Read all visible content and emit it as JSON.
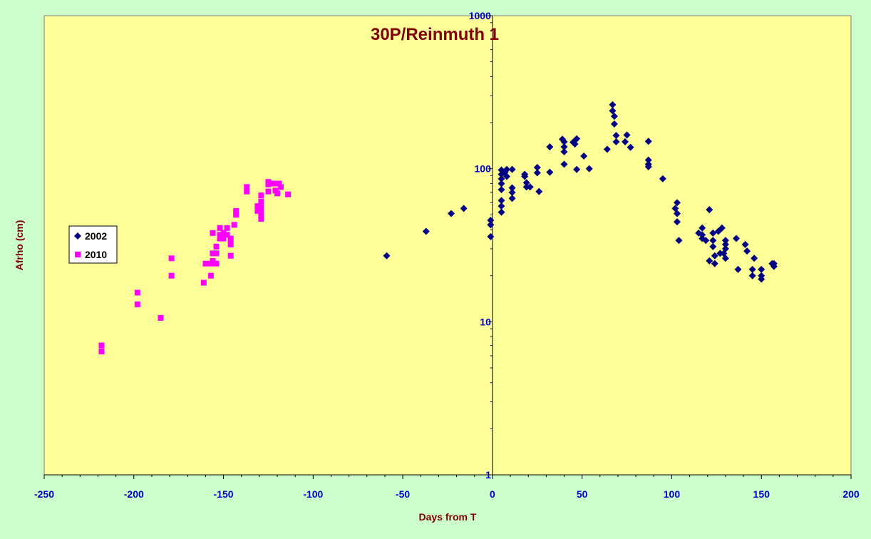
{
  "chart_data": {
    "type": "scatter",
    "title": "30P/Reinmuth 1",
    "xlabel": "Days from T",
    "ylabel": "Afrho (cm)",
    "xlim": [
      -250,
      200
    ],
    "ylim": [
      1,
      1000
    ],
    "yscale": "log",
    "x_ticks": [
      -250,
      -200,
      -150,
      -100,
      -50,
      0,
      50,
      100,
      150,
      200
    ],
    "x_tick_labels": [
      "-250",
      "-200",
      "-150",
      "-100",
      "-50",
      "0",
      "50",
      "100",
      "150",
      "200"
    ],
    "y_ticks": [
      1,
      10,
      100,
      1000
    ],
    "y_tick_labels": [
      "1",
      "10",
      "100",
      "1000"
    ],
    "grid": false,
    "legend": "left-middle",
    "colors": {
      "plot_background": "#ffff99",
      "page_background": "#ccffcc",
      "axis_text": "#0000cc",
      "title_text": "#800000"
    },
    "series": [
      {
        "name": "2002",
        "marker": "diamond",
        "color": "#000080",
        "points": [
          [
            -59,
            27
          ],
          [
            -37,
            39
          ],
          [
            -23,
            51
          ],
          [
            -16,
            55
          ],
          [
            -1,
            46
          ],
          [
            -1,
            43
          ],
          [
            -1,
            36
          ],
          [
            5,
            98
          ],
          [
            5,
            92
          ],
          [
            5,
            86
          ],
          [
            5,
            80
          ],
          [
            5,
            73
          ],
          [
            5,
            62
          ],
          [
            5,
            57
          ],
          [
            5,
            52
          ],
          [
            7,
            95
          ],
          [
            8,
            99
          ],
          [
            8,
            89
          ],
          [
            11,
            99
          ],
          [
            11,
            75
          ],
          [
            11,
            70
          ],
          [
            11,
            64
          ],
          [
            18,
            92
          ],
          [
            18,
            89
          ],
          [
            19,
            81
          ],
          [
            19,
            76
          ],
          [
            21,
            76
          ],
          [
            25,
            102
          ],
          [
            25,
            94
          ],
          [
            26,
            71
          ],
          [
            32,
            139
          ],
          [
            32,
            95
          ],
          [
            39,
            156
          ],
          [
            40,
            150
          ],
          [
            40,
            139
          ],
          [
            40,
            129
          ],
          [
            40,
            107
          ],
          [
            45,
            149
          ],
          [
            46,
            145
          ],
          [
            47,
            157
          ],
          [
            47,
            99
          ],
          [
            51,
            121
          ],
          [
            54,
            100
          ],
          [
            64,
            134
          ],
          [
            67,
            262
          ],
          [
            67,
            239
          ],
          [
            68,
            220
          ],
          [
            68,
            196
          ],
          [
            69,
            165
          ],
          [
            69,
            150
          ],
          [
            74,
            150
          ],
          [
            75,
            166
          ],
          [
            77,
            138
          ],
          [
            87,
            151
          ],
          [
            87,
            114
          ],
          [
            87,
            107
          ],
          [
            87,
            103
          ],
          [
            95,
            86
          ],
          [
            102,
            55
          ],
          [
            103,
            60
          ],
          [
            103,
            51
          ],
          [
            103,
            45
          ],
          [
            104,
            34
          ],
          [
            115,
            38
          ],
          [
            117,
            41
          ],
          [
            117,
            37
          ],
          [
            117,
            35
          ],
          [
            119,
            34
          ],
          [
            121,
            54
          ],
          [
            121,
            25
          ],
          [
            123,
            38
          ],
          [
            123,
            34
          ],
          [
            123,
            31
          ],
          [
            124,
            27
          ],
          [
            124,
            24
          ],
          [
            126,
            39
          ],
          [
            127,
            28
          ],
          [
            128,
            41
          ],
          [
            129,
            28
          ],
          [
            130,
            34
          ],
          [
            130,
            32
          ],
          [
            130,
            30
          ],
          [
            130,
            26
          ],
          [
            136,
            35
          ],
          [
            137,
            22
          ],
          [
            141,
            32
          ],
          [
            142,
            29
          ],
          [
            145,
            22
          ],
          [
            145,
            20
          ],
          [
            146,
            26
          ],
          [
            150,
            22
          ],
          [
            150,
            20
          ],
          [
            150,
            19
          ],
          [
            156,
            24
          ],
          [
            157,
            23
          ],
          [
            157,
            24
          ]
        ]
      },
      {
        "name": "2010",
        "marker": "square",
        "color": "#ff00ff",
        "points": [
          [
            -218,
            7
          ],
          [
            -218,
            6.4
          ],
          [
            -198,
            15.5
          ],
          [
            -198,
            13
          ],
          [
            -185,
            10.6
          ],
          [
            -179,
            26
          ],
          [
            -179,
            20
          ],
          [
            -161,
            18
          ],
          [
            -160,
            24
          ],
          [
            -157,
            24
          ],
          [
            -157,
            20
          ],
          [
            -156,
            38
          ],
          [
            -156,
            28
          ],
          [
            -156,
            25
          ],
          [
            -154,
            31
          ],
          [
            -154,
            28
          ],
          [
            -154,
            24
          ],
          [
            -152,
            41
          ],
          [
            -152,
            37
          ],
          [
            -152,
            35
          ],
          [
            -150,
            38
          ],
          [
            -150,
            35
          ],
          [
            -148,
            41
          ],
          [
            -148,
            37
          ],
          [
            -146,
            35
          ],
          [
            -146,
            34
          ],
          [
            -146,
            32
          ],
          [
            -146,
            27
          ],
          [
            -144,
            43
          ],
          [
            -143,
            50
          ],
          [
            -143,
            53
          ],
          [
            -137,
            76
          ],
          [
            -137,
            71
          ],
          [
            -131,
            57
          ],
          [
            -131,
            53
          ],
          [
            -129,
            67
          ],
          [
            -129,
            61
          ],
          [
            -129,
            56
          ],
          [
            -129,
            52
          ],
          [
            -129,
            49
          ],
          [
            -129,
            47
          ],
          [
            -125,
            82
          ],
          [
            -125,
            79
          ],
          [
            -125,
            71
          ],
          [
            -122,
            80
          ],
          [
            -121,
            72
          ],
          [
            -120,
            69
          ],
          [
            -119,
            80
          ],
          [
            -118,
            76
          ],
          [
            -114,
            68
          ]
        ]
      }
    ]
  }
}
